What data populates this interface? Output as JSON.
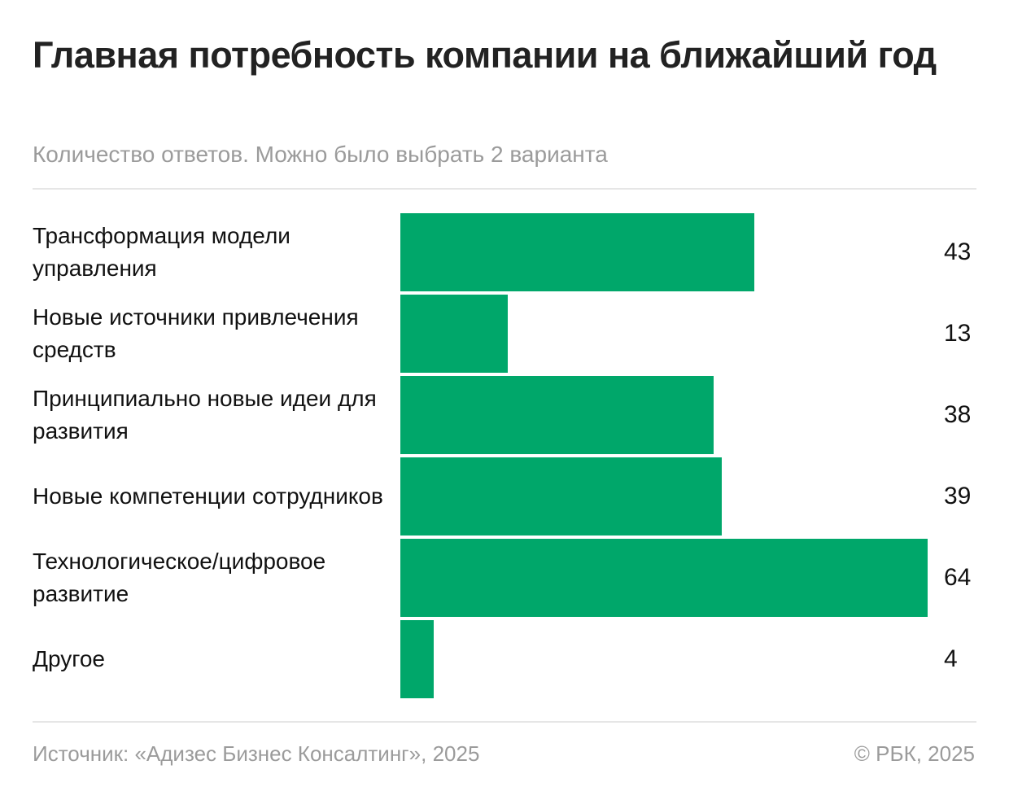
{
  "header": {
    "title": "Главная потребность компании на ближайший год",
    "subtitle": "Количество ответов. Можно было выбрать 2 варианта"
  },
  "footer": {
    "source": "Источник: «Адизес Бизнес Консалтинг», 2025",
    "copyright": "© РБК, 2025"
  },
  "colors": {
    "bar": "#00a76a"
  },
  "chart_data": {
    "type": "bar",
    "orientation": "horizontal",
    "title": "Главная потребность компании на ближайший год",
    "subtitle": "Количество ответов. Можно было выбрать 2 варианта",
    "categories": [
      "Трансформация модели управления",
      "Новые источники привлечения средств",
      "Принципиально новые идеи для развития",
      "Новые компетенции сотрудников",
      "Технологическое/цифровое развитие",
      "Другое"
    ],
    "values": [
      43,
      13,
      38,
      39,
      64,
      4
    ],
    "xlim": [
      0,
      64
    ],
    "grid": false,
    "legend": "none"
  }
}
